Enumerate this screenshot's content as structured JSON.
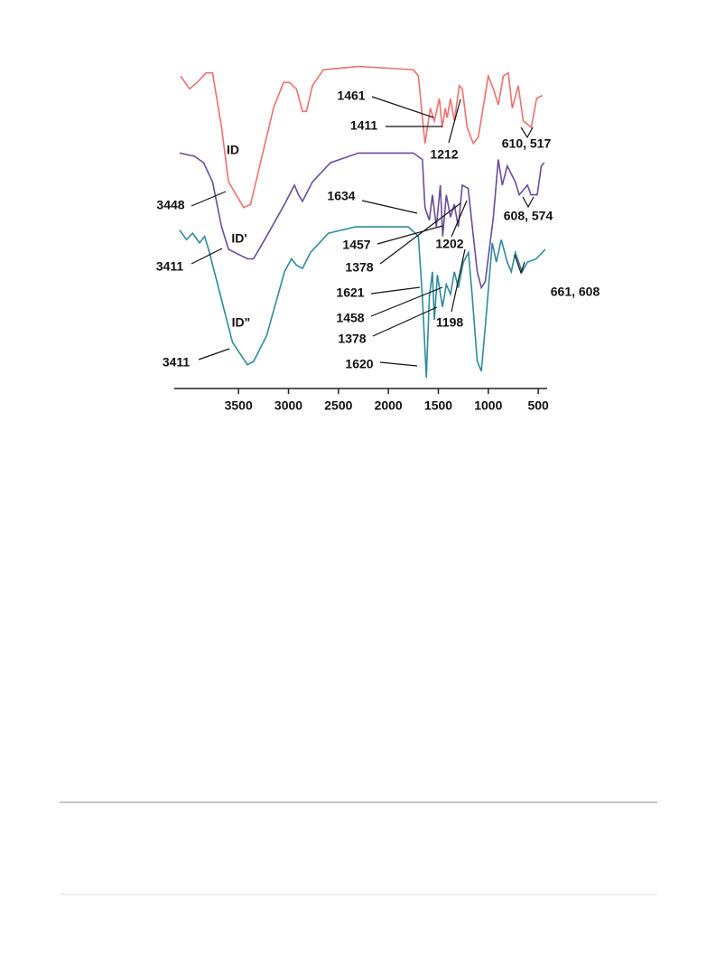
{
  "chart_data": {
    "type": "line",
    "xlim": [
      4080,
      420
    ],
    "xticks": [
      3500,
      3000,
      2500,
      2000,
      1500,
      1000,
      500
    ],
    "ylim": [
      0,
      100
    ],
    "series": [
      {
        "name": "ID",
        "color": "#ee7070",
        "x": [
          4080,
          3990,
          3915,
          3825,
          3760,
          3670,
          3600,
          3448,
          3380,
          3280,
          3150,
          3050,
          2990,
          2920,
          2860,
          2820,
          2760,
          2650,
          2300,
          1750,
          1700,
          1650,
          1634,
          1580,
          1540,
          1490,
          1461,
          1430,
          1411,
          1380,
          1340,
          1290,
          1260,
          1212,
          1150,
          1100,
          1000,
          950,
          900,
          850,
          800,
          760,
          700,
          650,
          610,
          570,
          517,
          460
        ],
        "values": [
          96,
          92,
          94,
          97,
          97,
          80,
          63,
          55,
          56,
          69,
          86,
          94,
          94,
          92,
          85,
          85,
          93,
          98,
          99,
          98,
          96,
          80,
          75,
          86,
          82,
          89,
          80,
          86,
          83,
          89,
          82,
          93,
          92,
          80,
          75,
          77,
          96,
          92,
          87,
          96,
          97,
          86,
          93,
          82,
          81,
          80,
          89,
          90
        ]
      },
      {
        "name": "ID'",
        "color": "#6a4c9c",
        "x": [
          4090,
          3940,
          3850,
          3760,
          3670,
          3600,
          3411,
          3350,
          3220,
          3040,
          2940,
          2900,
          2860,
          2760,
          2580,
          2300,
          1750,
          1660,
          1634,
          1590,
          1560,
          1520,
          1480,
          1457,
          1420,
          1378,
          1340,
          1300,
          1260,
          1202,
          1160,
          1110,
          1070,
          1030,
          950,
          900,
          860,
          810,
          730,
          690,
          608,
          574,
          510,
          470,
          440
        ],
        "values": [
          72,
          71,
          69,
          63,
          49,
          42,
          39,
          39,
          46,
          56,
          62,
          59,
          57,
          63,
          69,
          72,
          72,
          70,
          55,
          51,
          59,
          49,
          62,
          46,
          59,
          52,
          56,
          49,
          62,
          61,
          49,
          35,
          30,
          32,
          52,
          70,
          62,
          68,
          63,
          59,
          62,
          59,
          59,
          68,
          69
        ]
      },
      {
        "name": "ID\"",
        "color": "#2e8b9a",
        "x": [
          4090,
          4020,
          3960,
          3890,
          3840,
          3800,
          3700,
          3560,
          3411,
          3350,
          3220,
          3040,
          2970,
          2920,
          2860,
          2780,
          2600,
          2330,
          1800,
          1700,
          1660,
          1620,
          1590,
          1560,
          1540,
          1510,
          1458,
          1420,
          1378,
          1340,
          1300,
          1250,
          1198,
          1160,
          1110,
          1070,
          1030,
          960,
          920,
          870,
          810,
          770,
          730,
          661,
          608,
          520,
          430
        ],
        "values": [
          48,
          45,
          47,
          44,
          46,
          42,
          30,
          13,
          6,
          7,
          15,
          35,
          39,
          37,
          36,
          41,
          47,
          49,
          49,
          46,
          27,
          2,
          27,
          35,
          20,
          34,
          24,
          31,
          28,
          35,
          30,
          38,
          41,
          27,
          7,
          4,
          18,
          44,
          38,
          45,
          38,
          35,
          41,
          35,
          38,
          39,
          42
        ]
      }
    ],
    "annotations": [
      "3448",
      "3411",
      "3411",
      "1461",
      "1411",
      "1212",
      "610, 517",
      "1634",
      "1457",
      "1378",
      "1202",
      "608, 574",
      "1621",
      "1458",
      "1378",
      "1198",
      "661, 608",
      "1620"
    ]
  }
}
